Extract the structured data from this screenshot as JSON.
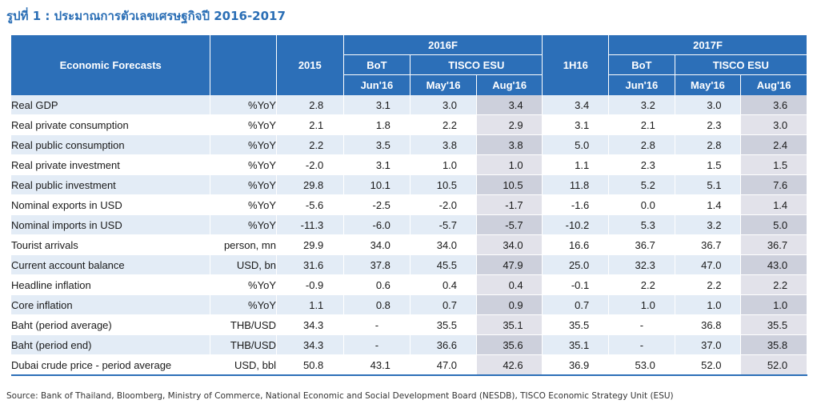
{
  "title": "รูปที่ 1 : ประมาณการตัวเลขเศรษฐกิจปี 2016-2017",
  "header": {
    "label": "Economic Forecasts",
    "col_2015": "2015",
    "group_2016": "2016F",
    "group_2017": "2017F",
    "col_1h16": "1H16",
    "bot": "BoT",
    "tisco": "TISCO ESU",
    "jun16": "Jun'16",
    "may16": "May'16",
    "aug16": "Aug'16"
  },
  "rows": [
    {
      "name": "Real GDP",
      "unit": "%YoY",
      "v": [
        "2.8",
        "3.1",
        "3.0",
        "3.4",
        "3.4",
        "3.2",
        "3.0",
        "3.6"
      ]
    },
    {
      "name": "Real private consumption",
      "unit": "%YoY",
      "v": [
        "2.1",
        "1.8",
        "2.2",
        "2.9",
        "3.1",
        "2.1",
        "2.3",
        "3.0"
      ]
    },
    {
      "name": "Real public consumption",
      "unit": "%YoY",
      "v": [
        "2.2",
        "3.5",
        "3.8",
        "3.8",
        "5.0",
        "2.8",
        "2.8",
        "2.4"
      ]
    },
    {
      "name": "Real private investment",
      "unit": "%YoY",
      "v": [
        "-2.0",
        "3.1",
        "1.0",
        "1.0",
        "1.1",
        "2.3",
        "1.5",
        "1.5"
      ]
    },
    {
      "name": "Real public investment",
      "unit": "%YoY",
      "v": [
        "29.8",
        "10.1",
        "10.5",
        "10.5",
        "11.8",
        "5.2",
        "5.1",
        "7.6"
      ]
    },
    {
      "name": "Nominal exports in USD",
      "unit": "%YoY",
      "v": [
        "-5.6",
        "-2.5",
        "-2.0",
        "-1.7",
        "-1.6",
        "0.0",
        "1.4",
        "1.4"
      ]
    },
    {
      "name": "Nominal imports in USD",
      "unit": "%YoY",
      "v": [
        "-11.3",
        "-6.0",
        "-5.7",
        "-5.7",
        "-10.2",
        "5.3",
        "3.2",
        "5.0"
      ]
    },
    {
      "name": "Tourist arrivals",
      "unit": "person, mn",
      "v": [
        "29.9",
        "34.0",
        "34.0",
        "34.0",
        "16.6",
        "36.7",
        "36.7",
        "36.7"
      ]
    },
    {
      "name": "Current account balance",
      "unit": "USD, bn",
      "v": [
        "31.6",
        "37.8",
        "45.5",
        "47.9",
        "25.0",
        "32.3",
        "47.0",
        "43.0"
      ]
    },
    {
      "name": "Headline inflation",
      "unit": "%YoY",
      "v": [
        "-0.9",
        "0.6",
        "0.4",
        "0.4",
        "-0.1",
        "2.2",
        "2.2",
        "2.2"
      ]
    },
    {
      "name": "Core inflation",
      "unit": "%YoY",
      "v": [
        "1.1",
        "0.8",
        "0.7",
        "0.9",
        "0.7",
        "1.0",
        "1.0",
        "1.0"
      ]
    },
    {
      "name": "Baht (period average)",
      "unit": "THB/USD",
      "v": [
        "34.3",
        "-",
        "35.5",
        "35.1",
        "35.5",
        "-",
        "36.8",
        "35.5"
      ]
    },
    {
      "name": "Baht (period end)",
      "unit": "THB/USD",
      "v": [
        "34.3",
        "-",
        "36.6",
        "35.6",
        "35.1",
        "-",
        "37.0",
        "35.8"
      ]
    },
    {
      "name": "Dubai crude price - period average",
      "unit": "USD, bbl",
      "v": [
        "50.8",
        "43.1",
        "47.0",
        "42.6",
        "36.9",
        "53.0",
        "52.0",
        "52.0"
      ]
    }
  ],
  "source": "Source: Bank of Thailand, Bloomberg, Ministry of Commerce, National Economic and Social Development Board (NESDB), TISCO Economic Strategy Unit (ESU)"
}
